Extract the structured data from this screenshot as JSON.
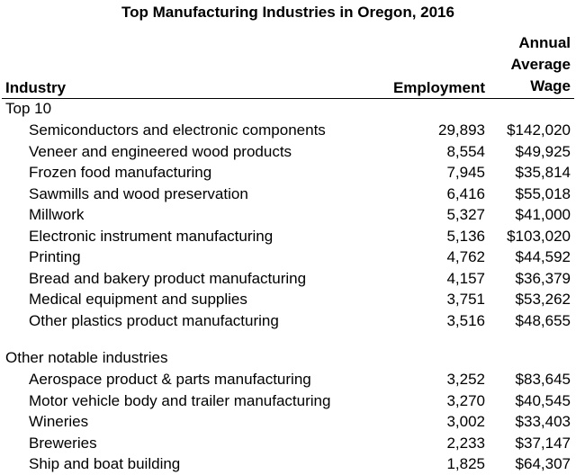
{
  "title": "Top Manufacturing Industries in Oregon, 2016",
  "columns": {
    "industry": "Industry",
    "employment": "Employment",
    "wage_line1": "Annual",
    "wage_line2": "Average",
    "wage_line3": "Wage"
  },
  "sections": [
    {
      "label": "Top 10",
      "rows": [
        {
          "industry": "Semiconductors and electronic components",
          "employment": "29,893",
          "wage": "$142,020"
        },
        {
          "industry": "Veneer and engineered wood products",
          "employment": "8,554",
          "wage": "$49,925"
        },
        {
          "industry": "Frozen food manufacturing",
          "employment": "7,945",
          "wage": "$35,814"
        },
        {
          "industry": "Sawmills and wood preservation",
          "employment": "6,416",
          "wage": "$55,018"
        },
        {
          "industry": "Millwork",
          "employment": "5,327",
          "wage": "$41,000"
        },
        {
          "industry": "Electronic instrument manufacturing",
          "employment": "5,136",
          "wage": "$103,020"
        },
        {
          "industry": "Printing",
          "employment": "4,762",
          "wage": "$44,592"
        },
        {
          "industry": "Bread and bakery product manufacturing",
          "employment": "4,157",
          "wage": "$36,379"
        },
        {
          "industry": "Medical equipment and supplies",
          "employment": "3,751",
          "wage": "$53,262"
        },
        {
          "industry": "Other plastics product manufacturing",
          "employment": "3,516",
          "wage": "$48,655"
        }
      ]
    },
    {
      "label": "Other notable industries",
      "rows": [
        {
          "industry": "Aerospace product & parts manufacturing",
          "employment": "3,252",
          "wage": "$83,645"
        },
        {
          "industry": "Motor vehicle body and trailer manufacturing",
          "employment": "3,270",
          "wage": "$40,545"
        },
        {
          "industry": "Wineries",
          "employment": "3,002",
          "wage": "$33,403"
        },
        {
          "industry": "Breweries",
          "employment": "2,233",
          "wage": "$37,147"
        },
        {
          "industry": "Ship and boat building",
          "employment": "1,825",
          "wage": "$64,307"
        }
      ]
    }
  ]
}
